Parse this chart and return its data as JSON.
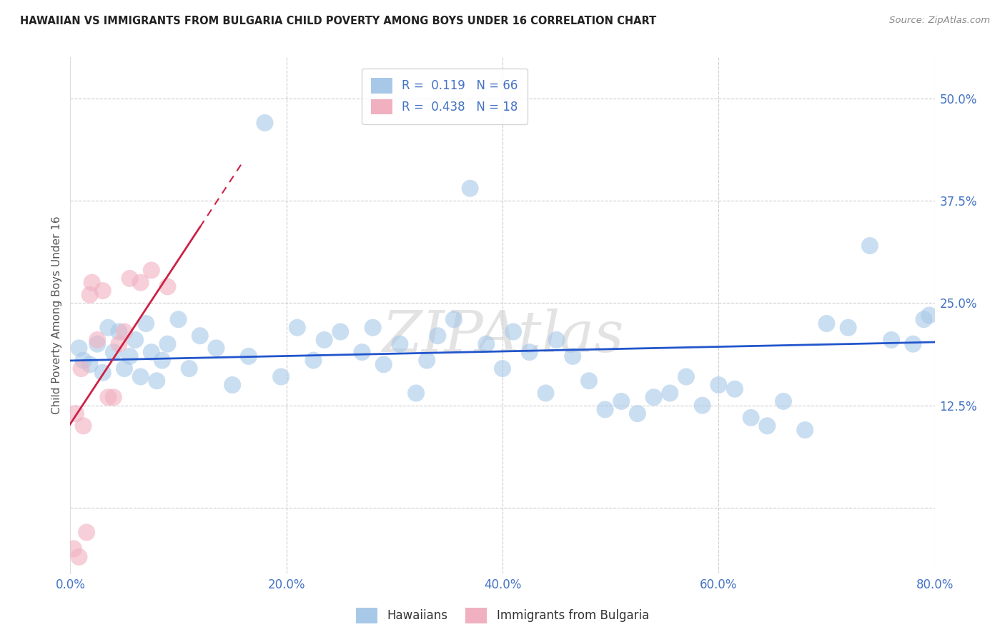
{
  "title": "HAWAIIAN VS IMMIGRANTS FROM BULGARIA CHILD POVERTY AMONG BOYS UNDER 16 CORRELATION CHART",
  "source": "Source: ZipAtlas.com",
  "xlabel_ticks": [
    "0.0%",
    "20.0%",
    "40.0%",
    "60.0%",
    "80.0%"
  ],
  "xlabel_tick_vals": [
    0.0,
    20.0,
    40.0,
    60.0,
    80.0
  ],
  "ylabel_ticks": [
    "12.5%",
    "25.0%",
    "37.5%",
    "50.0%"
  ],
  "ylabel_tick_vals": [
    12.5,
    25.0,
    37.5,
    50.0
  ],
  "ylabel": "Child Poverty Among Boys Under 16",
  "R_hawaiian": 0.119,
  "N_hawaiian": 66,
  "R_bulgaria": 0.438,
  "N_bulgaria": 18,
  "hawaiian_color": "#a8c8e8",
  "bulgaria_color": "#f0b0c0",
  "trend_hawaiian_color": "#2255cc",
  "trend_bulgaria_color": "#cc2244",
  "watermark": "ZIPAtlas",
  "xmin": 0.0,
  "xmax": 80.0,
  "ymin": -8.0,
  "ymax": 55.0,
  "hawaiian_x": [
    0.8,
    1.2,
    1.8,
    2.5,
    3.0,
    3.5,
    4.0,
    4.5,
    5.0,
    5.5,
    6.0,
    6.5,
    7.0,
    7.5,
    8.0,
    8.5,
    9.0,
    10.0,
    11.0,
    12.0,
    13.5,
    15.0,
    16.5,
    18.0,
    19.5,
    21.0,
    22.5,
    23.5,
    25.0,
    27.0,
    28.0,
    29.0,
    30.5,
    32.0,
    33.0,
    34.0,
    35.5,
    37.0,
    38.5,
    40.0,
    41.0,
    42.5,
    44.0,
    45.0,
    46.5,
    48.0,
    49.5,
    51.0,
    52.5,
    54.0,
    55.5,
    57.0,
    58.5,
    60.0,
    61.5,
    63.0,
    64.5,
    66.0,
    68.0,
    70.0,
    72.0,
    74.0,
    76.0,
    78.0,
    79.0,
    79.5
  ],
  "hawaiian_y": [
    19.5,
    18.0,
    17.5,
    20.0,
    16.5,
    22.0,
    19.0,
    21.5,
    17.0,
    18.5,
    20.5,
    16.0,
    22.5,
    19.0,
    15.5,
    18.0,
    20.0,
    23.0,
    17.0,
    21.0,
    19.5,
    15.0,
    18.5,
    47.0,
    16.0,
    22.0,
    18.0,
    20.5,
    21.5,
    19.0,
    22.0,
    17.5,
    20.0,
    14.0,
    18.0,
    21.0,
    23.0,
    39.0,
    20.0,
    17.0,
    21.5,
    19.0,
    14.0,
    20.5,
    18.5,
    15.5,
    12.0,
    13.0,
    11.5,
    13.5,
    14.0,
    16.0,
    12.5,
    15.0,
    14.5,
    11.0,
    10.0,
    13.0,
    9.5,
    22.5,
    22.0,
    32.0,
    20.5,
    20.0,
    23.0,
    23.5
  ],
  "bulgaria_x": [
    0.3,
    0.5,
    0.8,
    1.0,
    1.2,
    1.5,
    1.8,
    2.0,
    2.5,
    3.0,
    3.5,
    4.0,
    4.5,
    5.0,
    5.5,
    6.5,
    7.5,
    9.0
  ],
  "bulgaria_y": [
    -5.0,
    11.5,
    -6.0,
    17.0,
    10.0,
    -3.0,
    26.0,
    27.5,
    20.5,
    26.5,
    13.5,
    13.5,
    20.0,
    21.5,
    28.0,
    27.5,
    29.0,
    27.0
  ]
}
